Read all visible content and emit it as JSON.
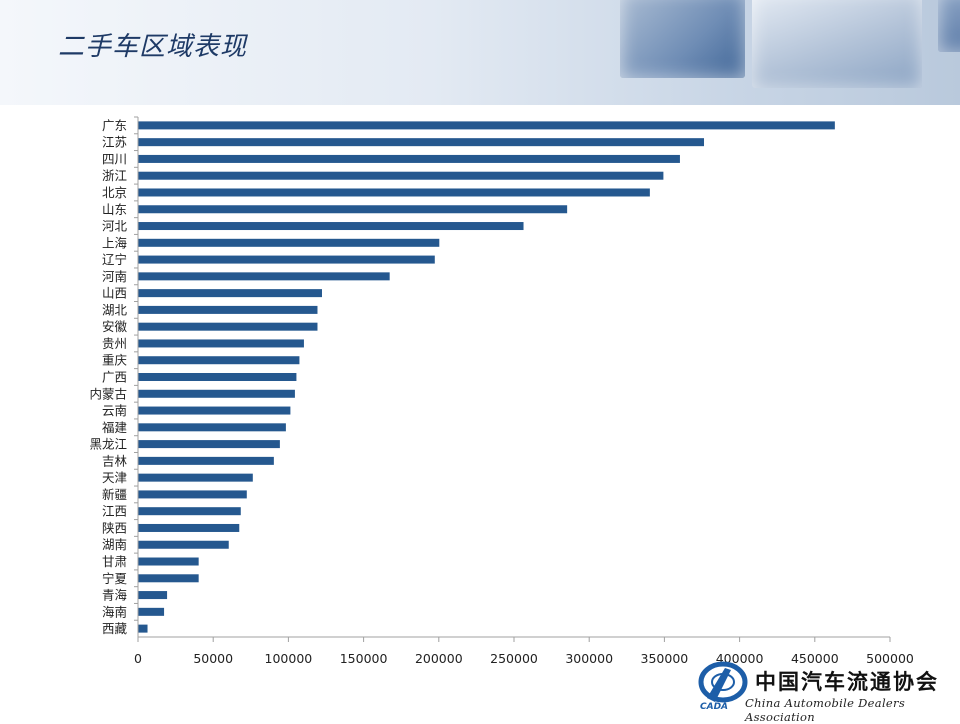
{
  "page": {
    "title": "二手车区域表现"
  },
  "logo": {
    "name_cn": "中国汽车流通协会",
    "name_en": "China Automobile Dealers Association",
    "abbr": "CADA"
  },
  "colors": {
    "bar": "#25588f",
    "axis": "#a0a0a0",
    "title": "#1e3a66"
  },
  "chart_data": {
    "type": "bar",
    "orientation": "horizontal",
    "title": "",
    "xlabel": "",
    "ylabel": "",
    "xlim": [
      0,
      500000
    ],
    "xticks": [
      0,
      50000,
      100000,
      150000,
      200000,
      250000,
      300000,
      350000,
      400000,
      450000,
      500000
    ],
    "grid": false,
    "categories": [
      "广东",
      "江苏",
      "四川",
      "浙江",
      "北京",
      "山东",
      "河北",
      "上海",
      "辽宁",
      "河南",
      "山西",
      "湖北",
      "安徽",
      "贵州",
      "重庆",
      "广西",
      "内蒙古",
      "云南",
      "福建",
      "黑龙江",
      "吉林",
      "天津",
      "新疆",
      "江西",
      "陕西",
      "湖南",
      "甘肃",
      "宁夏",
      "青海",
      "海南",
      "西藏"
    ],
    "values": [
      463000,
      376000,
      360000,
      349000,
      340000,
      285000,
      256000,
      200000,
      197000,
      167000,
      122000,
      119000,
      119000,
      110000,
      107000,
      105000,
      104000,
      101000,
      98000,
      94000,
      90000,
      76000,
      72000,
      68000,
      67000,
      60000,
      40000,
      40000,
      19000,
      17000,
      6000
    ]
  }
}
